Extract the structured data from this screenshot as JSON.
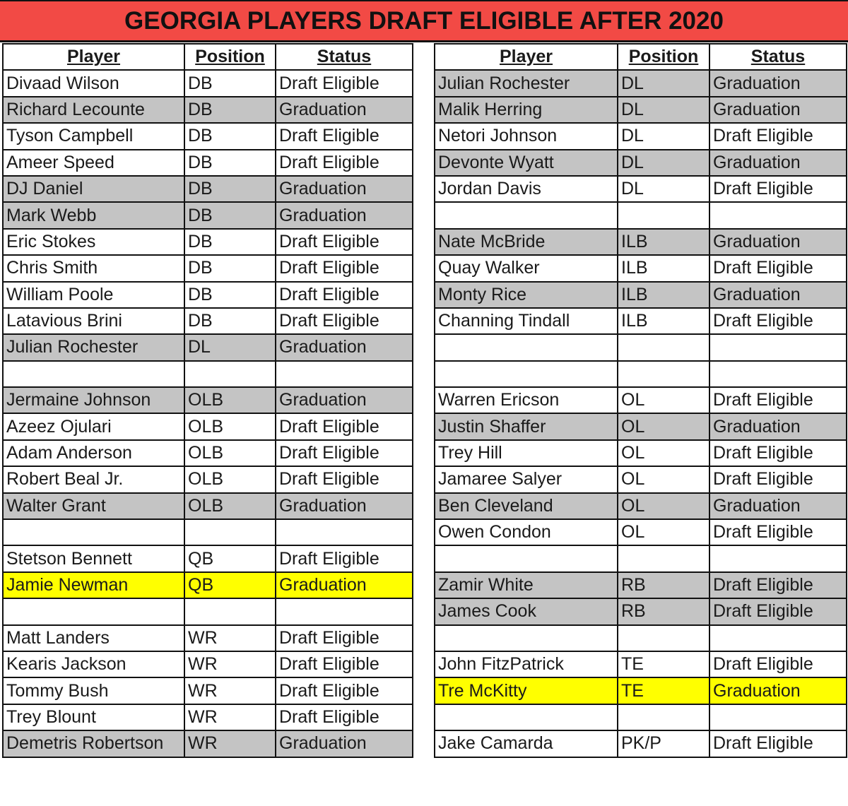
{
  "title": "GEORGIA PLAYERS DRAFT ELIGIBLE AFTER 2020",
  "headers": [
    "Player",
    "Position",
    "Status"
  ],
  "colors": {
    "title_bg": "#f24a45",
    "gray_row": "#c4c4c4",
    "yellow_row": "#ffff00"
  },
  "left_table": [
    {
      "player": "Divaad Wilson",
      "position": "DB",
      "status": "Draft Eligible",
      "fill": ""
    },
    {
      "player": "Richard Lecounte",
      "position": "DB",
      "status": "Graduation",
      "fill": "gray"
    },
    {
      "player": "Tyson Campbell",
      "position": "DB",
      "status": "Draft Eligible",
      "fill": ""
    },
    {
      "player": "Ameer Speed",
      "position": "DB",
      "status": "Draft Eligible",
      "fill": ""
    },
    {
      "player": "DJ Daniel",
      "position": "DB",
      "status": "Graduation",
      "fill": "gray"
    },
    {
      "player": "Mark Webb",
      "position": "DB",
      "status": "Graduation",
      "fill": "gray"
    },
    {
      "player": "Eric Stokes",
      "position": "DB",
      "status": "Draft Eligible",
      "fill": ""
    },
    {
      "player": "Chris Smith",
      "position": "DB",
      "status": "Draft Eligible",
      "fill": ""
    },
    {
      "player": "William Poole",
      "position": "DB",
      "status": "Draft Eligible",
      "fill": ""
    },
    {
      "player": "Latavious Brini",
      "position": "DB",
      "status": "Draft Eligible",
      "fill": ""
    },
    {
      "player": "Julian Rochester",
      "position": "DL",
      "status": "Graduation",
      "fill": "gray"
    },
    {
      "player": "",
      "position": "",
      "status": "",
      "fill": ""
    },
    {
      "player": "Jermaine Johnson",
      "position": "OLB",
      "status": "Graduation",
      "fill": "gray"
    },
    {
      "player": "Azeez Ojulari",
      "position": "OLB",
      "status": "Draft Eligible",
      "fill": ""
    },
    {
      "player": "Adam Anderson",
      "position": "OLB",
      "status": "Draft Eligible",
      "fill": ""
    },
    {
      "player": "Robert Beal Jr.",
      "position": "OLB",
      "status": "Draft Eligible",
      "fill": ""
    },
    {
      "player": "Walter Grant",
      "position": "OLB",
      "status": "Graduation",
      "fill": "gray"
    },
    {
      "player": "",
      "position": "",
      "status": "",
      "fill": ""
    },
    {
      "player": "Stetson Bennett",
      "position": "QB",
      "status": "Draft Eligible",
      "fill": ""
    },
    {
      "player": "Jamie Newman",
      "position": "QB",
      "status": "Graduation",
      "fill": "yellow"
    },
    {
      "player": "",
      "position": "",
      "status": "",
      "fill": ""
    },
    {
      "player": "Matt Landers",
      "position": "WR",
      "status": "Draft Eligible",
      "fill": ""
    },
    {
      "player": "Kearis Jackson",
      "position": "WR",
      "status": "Draft Eligible",
      "fill": ""
    },
    {
      "player": "Tommy Bush",
      "position": "WR",
      "status": "Draft Eligible",
      "fill": ""
    },
    {
      "player": "Trey Blount",
      "position": "WR",
      "status": "Draft Eligible",
      "fill": ""
    },
    {
      "player": "Demetris Robertson",
      "position": "WR",
      "status": "Graduation",
      "fill": "gray"
    }
  ],
  "right_table": [
    {
      "player": "Julian Rochester",
      "position": "DL",
      "status": "Graduation",
      "fill": "gray"
    },
    {
      "player": "Malik Herring",
      "position": "DL",
      "status": "Graduation",
      "fill": "gray"
    },
    {
      "player": "Netori Johnson",
      "position": "DL",
      "status": "Draft Eligible",
      "fill": ""
    },
    {
      "player": "Devonte Wyatt",
      "position": "DL",
      "status": "Graduation",
      "fill": "gray"
    },
    {
      "player": "Jordan Davis",
      "position": "DL",
      "status": "Draft Eligible",
      "fill": ""
    },
    {
      "player": "",
      "position": "",
      "status": "",
      "fill": ""
    },
    {
      "player": "Nate McBride",
      "position": "ILB",
      "status": "Graduation",
      "fill": "gray"
    },
    {
      "player": "Quay Walker",
      "position": "ILB",
      "status": "Draft Eligible",
      "fill": ""
    },
    {
      "player": "Monty Rice",
      "position": "ILB",
      "status": "Graduation",
      "fill": "gray"
    },
    {
      "player": "Channing Tindall",
      "position": "ILB",
      "status": "Draft Eligible",
      "fill": ""
    },
    {
      "player": "",
      "position": "",
      "status": "",
      "fill": ""
    },
    {
      "player": "",
      "position": "",
      "status": "",
      "fill": ""
    },
    {
      "player": "Warren Ericson",
      "position": "OL",
      "status": "Draft Eligible",
      "fill": ""
    },
    {
      "player": "Justin Shaffer",
      "position": "OL",
      "status": "Graduation",
      "fill": "gray"
    },
    {
      "player": "Trey Hill",
      "position": "OL",
      "status": "Draft Eligible",
      "fill": ""
    },
    {
      "player": "Jamaree Salyer",
      "position": "OL",
      "status": "Draft Eligible",
      "fill": ""
    },
    {
      "player": "Ben Cleveland",
      "position": "OL",
      "status": "Graduation",
      "fill": "gray"
    },
    {
      "player": "Owen Condon",
      "position": "OL",
      "status": "Draft Eligible",
      "fill": ""
    },
    {
      "player": "",
      "position": "",
      "status": "",
      "fill": ""
    },
    {
      "player": "Zamir White",
      "position": "RB",
      "status": "Draft Eligible",
      "fill": "gray"
    },
    {
      "player": "James Cook",
      "position": "RB",
      "status": "Draft Eligible",
      "fill": "gray"
    },
    {
      "player": "",
      "position": "",
      "status": "",
      "fill": ""
    },
    {
      "player": "John FitzPatrick",
      "position": "TE",
      "status": "Draft Eligible",
      "fill": ""
    },
    {
      "player": "Tre McKitty",
      "position": "TE",
      "status": "Graduation",
      "fill": "yellow"
    },
    {
      "player": "",
      "position": "",
      "status": "",
      "fill": ""
    },
    {
      "player": "Jake Camarda",
      "position": "PK/P",
      "status": "Draft Eligible",
      "fill": ""
    }
  ]
}
